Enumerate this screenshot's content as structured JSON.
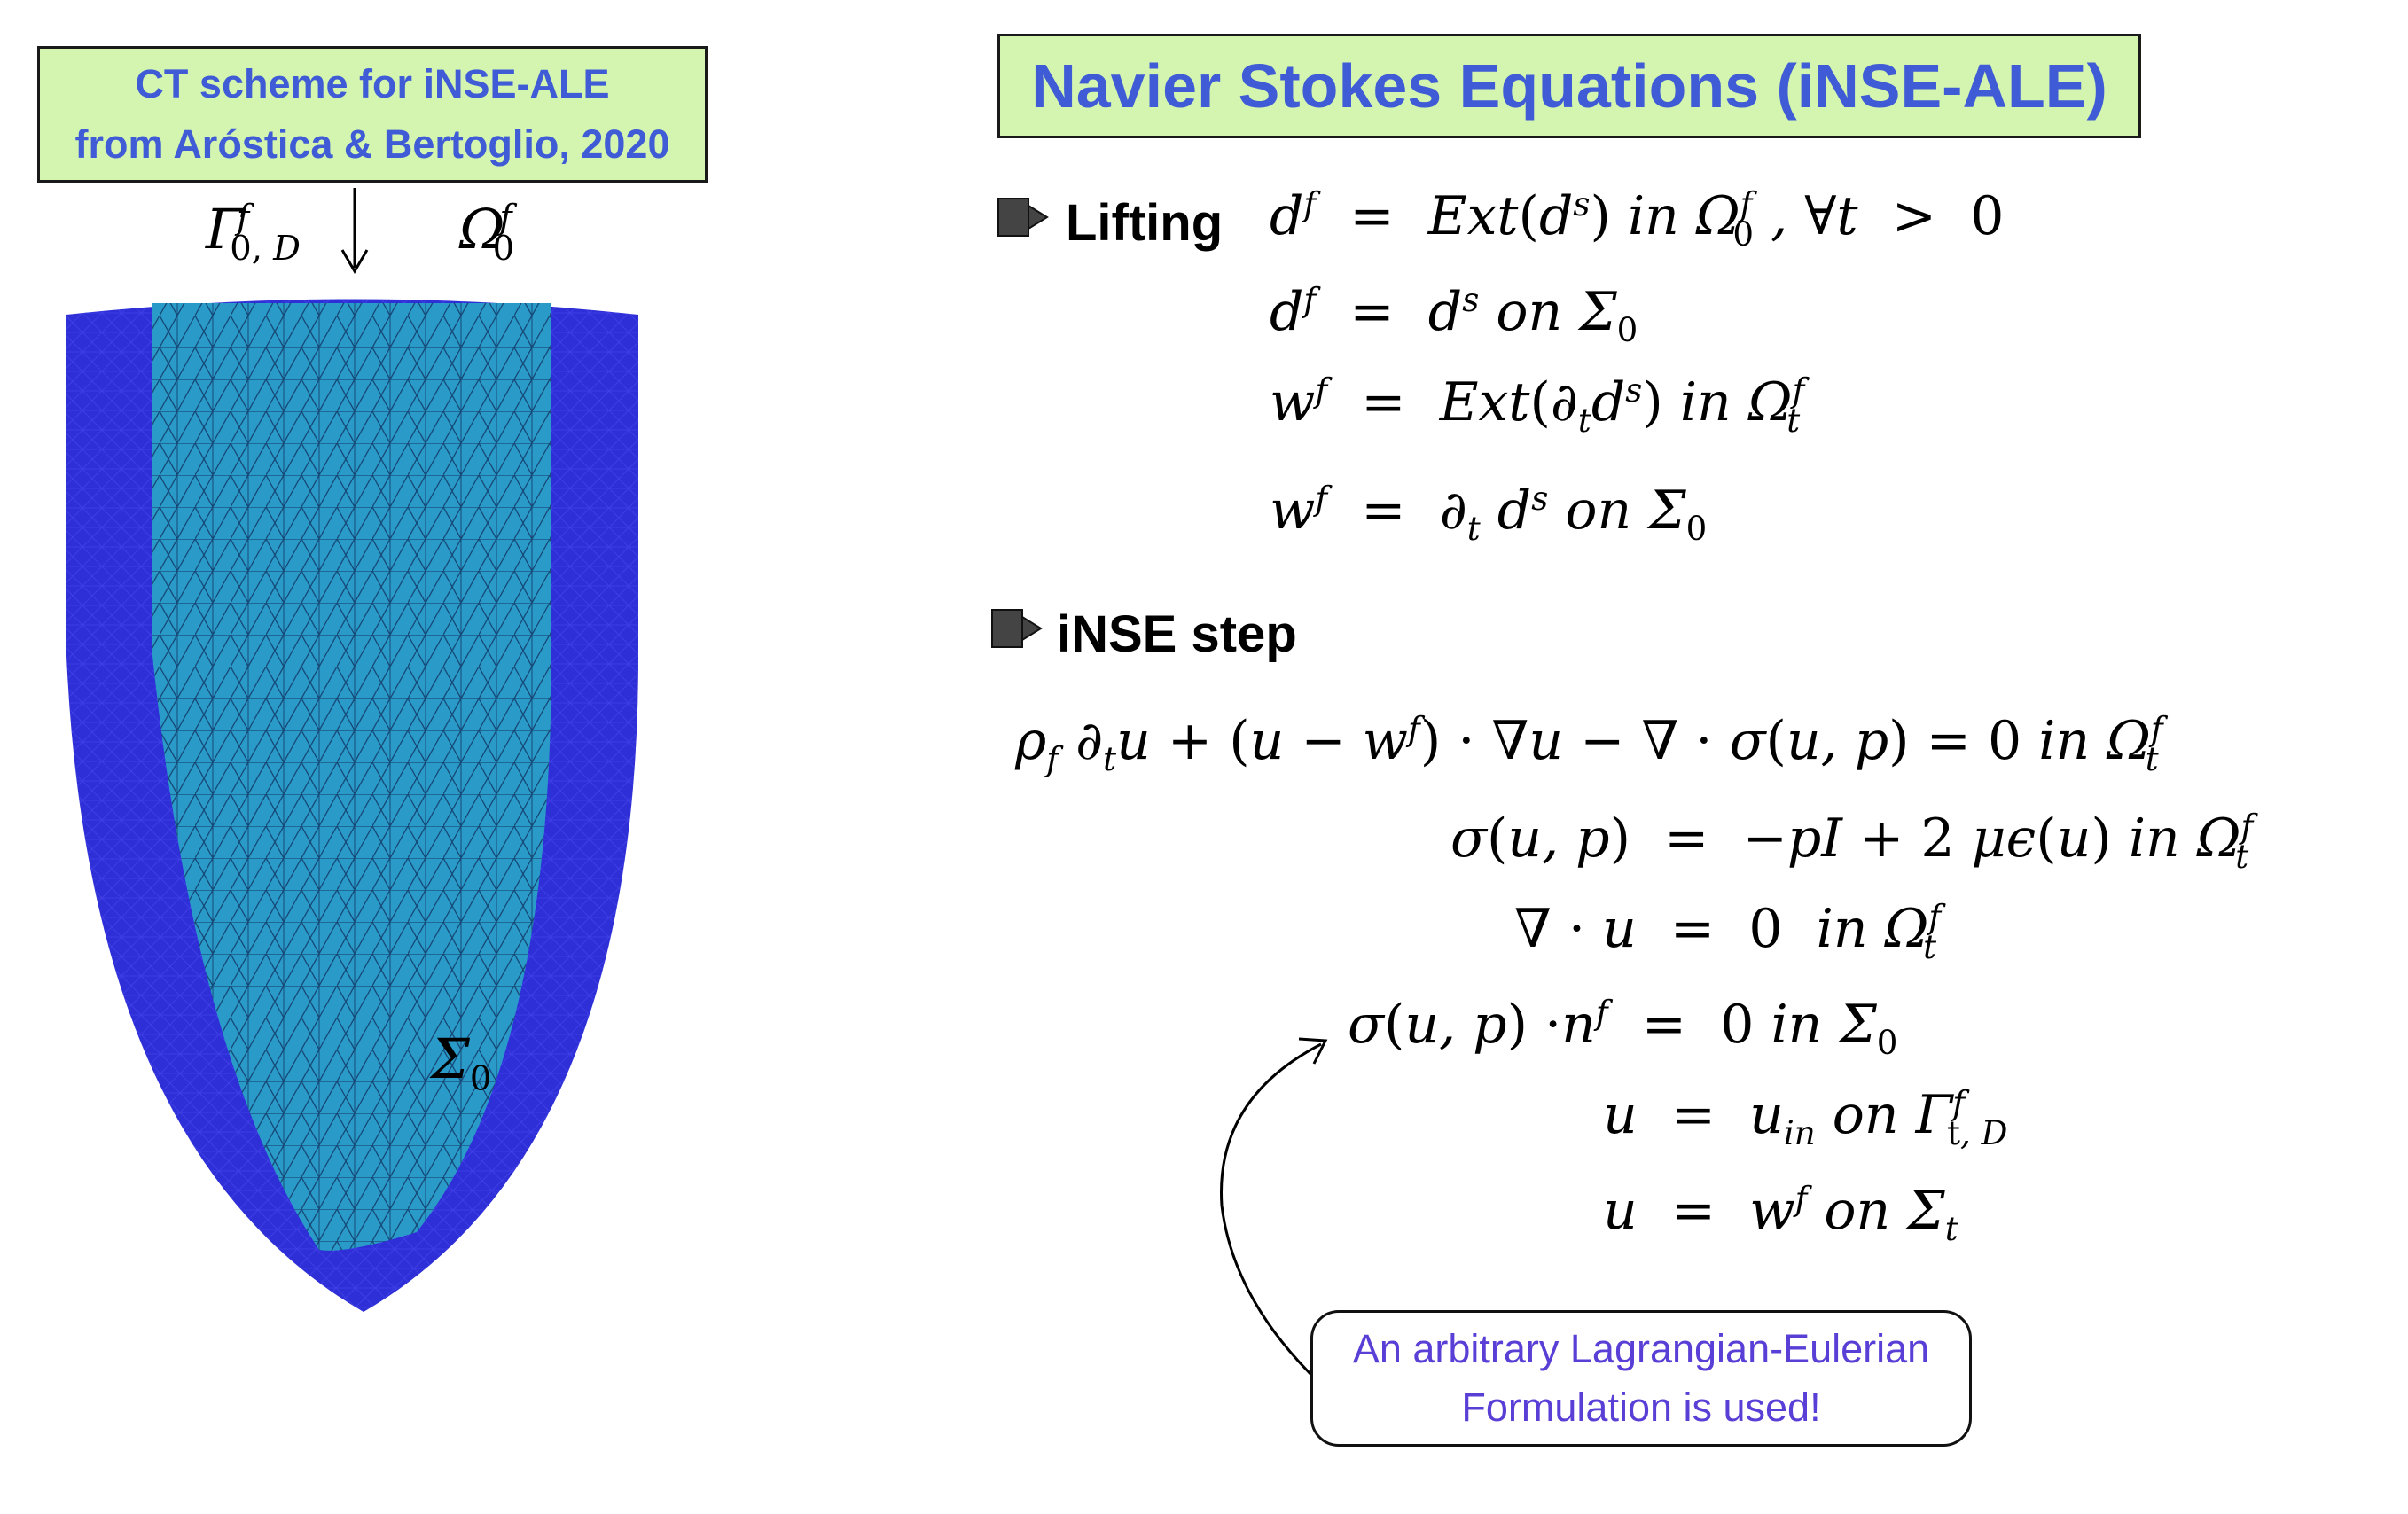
{
  "ct_box": {
    "line1": "CT scheme for iNSE-ALE",
    "line2": "from Aróstica & Bertoglio, 2020"
  },
  "title": "Navier Stokes Equations (iNSE-ALE)",
  "mesh_labels": {
    "gamma": "Γ",
    "omega": "Ω",
    "sigma": "Σ"
  },
  "sections": {
    "lifting": "Lifting",
    "inse": "iNSE step"
  },
  "callout": {
    "line1": "An arbitrary Lagrangian-Eulerian",
    "line2": "Formulation is used!"
  },
  "colors": {
    "outer_mesh": "#2f2fd8",
    "inner_mesh": "#2a9ac8",
    "title_bg": "#d4f5b0",
    "title_text": "#3f5bd6",
    "callout_text": "#5a3fd6"
  }
}
